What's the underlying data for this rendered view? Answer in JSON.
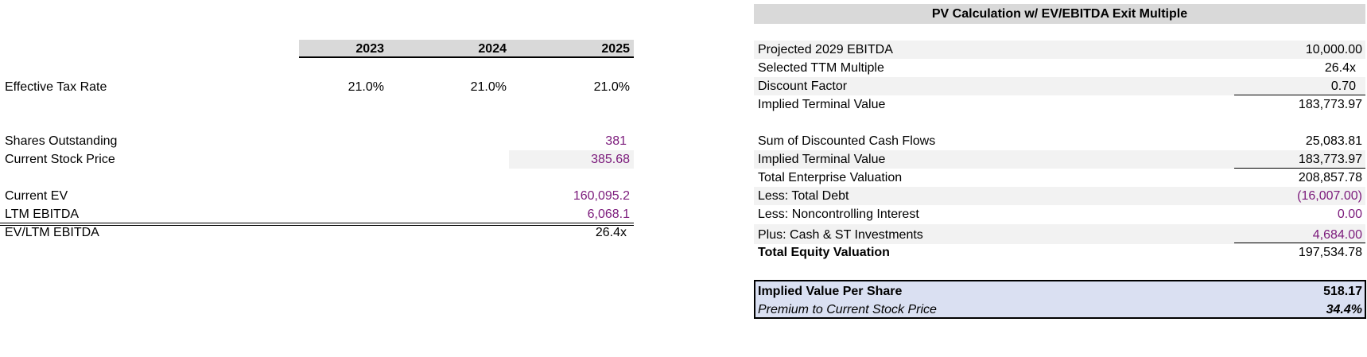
{
  "left": {
    "years": [
      "2023",
      "2024",
      "2025"
    ],
    "effective_tax_rate": {
      "label": "Effective Tax Rate",
      "values": [
        "21.0%",
        "21.0%",
        "21.0%"
      ]
    },
    "shares_outstanding": {
      "label": "Shares Outstanding",
      "value": "381"
    },
    "current_stock_price": {
      "label": "Current Stock Price",
      "value": "385.68"
    },
    "current_ev": {
      "label": "Current EV",
      "value": "160,095.2"
    },
    "ltm_ebitda": {
      "label": "LTM EBITDA",
      "value": "6,068.1"
    },
    "ev_ltm_ebitda": {
      "label": "EV/LTM EBITDA",
      "value": "26.4x"
    }
  },
  "right": {
    "title": "PV Calculation w/ EV/EBITDA Exit Multiple",
    "rows": [
      {
        "label": "Projected 2029 EBITDA",
        "value": "10,000.00"
      },
      {
        "label": "Selected TTM Multiple",
        "value": "26.4x"
      },
      {
        "label": "Discount Factor",
        "value": "0.70"
      },
      {
        "label": "Implied Terminal Value",
        "value": "183,773.97"
      },
      {
        "label": "Sum of Discounted Cash Flows",
        "value": "25,083.81"
      },
      {
        "label": "Implied Terminal Value",
        "value": "183,773.97"
      },
      {
        "label": "Total Enterprise Valuation",
        "value": "208,857.78"
      },
      {
        "label": "Less: Total Debt",
        "value": "(16,007.00)"
      },
      {
        "label": "Less: Noncontrolling Interest",
        "value": "0.00"
      },
      {
        "label": "Plus: Cash & ST Investments",
        "value": "4,684.00"
      },
      {
        "label": "Total Equity Valuation",
        "value": "197,534.78"
      }
    ],
    "implied_value_per_share": {
      "label": "Implied Value Per Share",
      "value": "518.17"
    },
    "premium": {
      "label": "Premium to Current Stock Price",
      "value": "34.4%"
    }
  },
  "colors": {
    "input": "#7b1a7b",
    "header_bg": "#d9d9d9",
    "band": "#f2f2f2",
    "summary_bg": "#dae0f2"
  }
}
